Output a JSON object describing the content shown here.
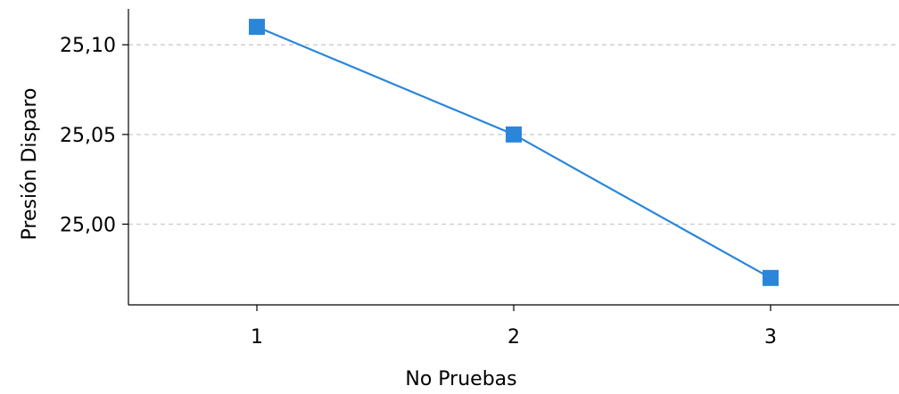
{
  "chart_data": {
    "type": "line",
    "xlabel": "No Pruebas",
    "ylabel": "Presión Disparo",
    "x": [
      1,
      2,
      3
    ],
    "x_tick_labels": [
      "1",
      "2",
      "3"
    ],
    "y_ticks": [
      25.0,
      25.05,
      25.1
    ],
    "y_tick_labels": [
      "25,00",
      "25,05",
      "25,10"
    ],
    "series": [
      {
        "values": [
          25.11,
          25.05,
          24.97
        ],
        "color": "#2a86d9",
        "marker": "square"
      }
    ],
    "xlim": [
      0.5,
      3.5
    ],
    "ylim": [
      24.955,
      25.12
    ],
    "grid": "horizontal-dashed"
  }
}
